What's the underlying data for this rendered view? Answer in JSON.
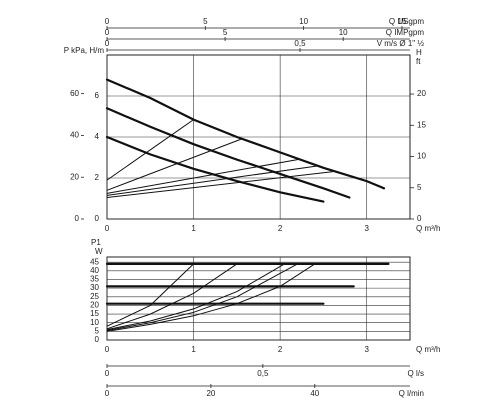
{
  "chart_data": [
    {
      "type": "line",
      "xlim": [
        0,
        3.5
      ],
      "xticks": [
        0,
        1,
        2,
        3
      ],
      "xlabel": "Q m³/h",
      "ylim": [
        0,
        8
      ],
      "yticks": [
        0,
        2,
        4,
        6
      ],
      "ylabel": "P kPa, H/m",
      "grid": true,
      "axes": [
        {
          "position": "top",
          "label": "Q USgpm",
          "lim": [
            0,
            15.41
          ],
          "ticks": [
            0,
            5,
            10,
            15
          ]
        },
        {
          "position": "top",
          "label": "Q IMPgpm",
          "lim": [
            0,
            12.83
          ],
          "ticks": [
            0,
            5,
            10
          ]
        },
        {
          "position": "top",
          "label": "V m/s Ø 1\" ½",
          "lim": [
            0,
            0.785
          ],
          "ticks": [
            0,
            {
              "value": 0.5,
              "label": "0,5"
            }
          ]
        },
        {
          "position": "left",
          "lim": [
            0,
            78.5
          ],
          "ticks": [
            0,
            20,
            40,
            60
          ]
        },
        {
          "position": "right",
          "label": "H",
          "unit": "ft",
          "lim": [
            0,
            26.25
          ],
          "ticks": [
            0,
            5,
            10,
            15,
            20
          ]
        }
      ],
      "series": [
        {
          "color": "#111111",
          "style": "thick",
          "x": [
            0,
            0.5,
            1,
            1.5,
            2,
            2.5,
            3,
            3.2
          ],
          "values": [
            6.8,
            5.9,
            4.85,
            4.0,
            3.25,
            2.5,
            1.85,
            1.5
          ]
        },
        {
          "color": "#111111",
          "style": "thick",
          "x": [
            0,
            0.5,
            1,
            1.5,
            2,
            2.5,
            2.8
          ],
          "values": [
            5.4,
            4.5,
            3.65,
            2.9,
            2.2,
            1.5,
            1.05
          ]
        },
        {
          "color": "#111111",
          "style": "thick",
          "x": [
            0,
            0.5,
            1,
            1.5,
            2,
            2.5
          ],
          "values": [
            4.0,
            3.15,
            2.45,
            1.85,
            1.3,
            0.85
          ]
        },
        {
          "color": "#111111",
          "style": "thin",
          "x": [
            0,
            1
          ],
          "values": [
            1.9,
            4.85
          ]
        },
        {
          "color": "#111111",
          "style": "thin",
          "x": [
            0,
            1.55
          ],
          "values": [
            1.4,
            3.9
          ]
        },
        {
          "color": "#111111",
          "style": "thin",
          "x": [
            0,
            2.2
          ],
          "values": [
            1.25,
            2.9
          ]
        },
        {
          "color": "#111111",
          "style": "thin",
          "x": [
            0,
            2.45
          ],
          "values": [
            1.15,
            2.6
          ]
        },
        {
          "color": "#111111",
          "style": "thin",
          "x": [
            0,
            2.6
          ],
          "values": [
            1.05,
            2.3
          ]
        }
      ]
    },
    {
      "type": "line",
      "xlim": [
        0,
        3.5
      ],
      "xticks": [
        0,
        1,
        2,
        3
      ],
      "xlabel": "Q m³/h",
      "ylim": [
        0,
        48
      ],
      "yticks": [
        0,
        5,
        10,
        15,
        20,
        25,
        30,
        35,
        40,
        45
      ],
      "ylabel": "P1",
      "yunit": "W",
      "grid": true,
      "axes": [
        {
          "position": "bottom",
          "label": "Q l/s",
          "lim": [
            0,
            0.972
          ],
          "ticks": [
            0,
            {
              "value": 0.5,
              "label": "0,5"
            }
          ]
        },
        {
          "position": "bottom",
          "label": "Q l/min",
          "lim": [
            0,
            58.33
          ],
          "ticks": [
            0,
            20,
            40
          ]
        }
      ],
      "series": [
        {
          "color": "#111111",
          "style": "thick",
          "x": [
            0,
            3.25
          ],
          "values": [
            44,
            44
          ]
        },
        {
          "color": "#111111",
          "style": "thick",
          "x": [
            0,
            2.85
          ],
          "values": [
            31,
            31
          ]
        },
        {
          "color": "#111111",
          "style": "thick",
          "x": [
            0,
            2.5
          ],
          "values": [
            21,
            21
          ]
        },
        {
          "color": "#111111",
          "style": "thin",
          "x": [
            0,
            0.5,
            1
          ],
          "values": [
            8,
            20,
            44
          ]
        },
        {
          "color": "#111111",
          "style": "thin",
          "x": [
            0,
            0.5,
            1,
            1.5
          ],
          "values": [
            6.5,
            15,
            27,
            44
          ]
        },
        {
          "color": "#111111",
          "style": "thin",
          "x": [
            0,
            0.5,
            1,
            1.5,
            2.05
          ],
          "values": [
            6,
            11,
            18,
            28,
            44
          ]
        },
        {
          "color": "#111111",
          "style": "thin",
          "x": [
            0,
            0.5,
            1,
            1.5,
            2.2
          ],
          "values": [
            5.5,
            10,
            16,
            25,
            44
          ]
        },
        {
          "color": "#111111",
          "style": "thin",
          "x": [
            0,
            0.5,
            1,
            1.5,
            2,
            2.4
          ],
          "values": [
            5,
            9,
            14,
            21,
            31,
            44
          ]
        }
      ]
    }
  ]
}
